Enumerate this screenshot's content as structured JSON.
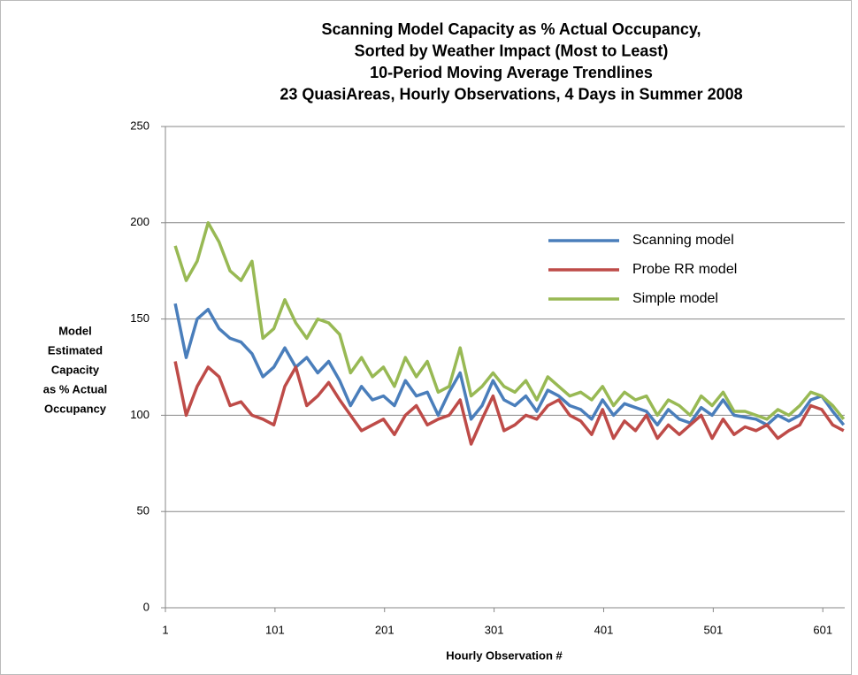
{
  "chart_data": {
    "type": "line",
    "title": [
      "Scanning Model Capacity as % Actual Occupancy,",
      "Sorted by Weather Impact (Most to Least)",
      "10-Period Moving Average Trendlines",
      "23 QuasiAreas, Hourly Observations, 4 Days in Summer 2008"
    ],
    "x_label": "Hourly Observation #",
    "y_label": [
      "Model",
      "Estimated",
      "Capacity",
      "as % Actual",
      "Occupancy"
    ],
    "x": [
      10,
      20,
      30,
      40,
      50,
      60,
      70,
      80,
      90,
      100,
      110,
      120,
      130,
      140,
      150,
      160,
      170,
      180,
      190,
      200,
      210,
      220,
      230,
      240,
      250,
      260,
      270,
      280,
      290,
      300,
      310,
      320,
      330,
      340,
      350,
      360,
      370,
      380,
      390,
      400,
      410,
      420,
      430,
      440,
      450,
      460,
      470,
      480,
      490,
      500,
      510,
      520,
      530,
      540,
      550,
      560,
      570,
      580,
      590,
      600,
      610,
      620
    ],
    "series": [
      {
        "name": "Scanning model",
        "color": "#4a7ebb",
        "values": [
          158,
          130,
          150,
          155,
          145,
          140,
          138,
          132,
          120,
          125,
          135,
          125,
          130,
          122,
          128,
          118,
          105,
          115,
          108,
          110,
          105,
          118,
          110,
          112,
          100,
          112,
          122,
          98,
          105,
          118,
          108,
          105,
          110,
          102,
          113,
          110,
          105,
          103,
          98,
          108,
          100,
          106,
          104,
          102,
          95,
          103,
          98,
          96,
          104,
          100,
          108,
          100,
          99,
          98,
          95,
          100,
          97,
          100,
          108,
          110,
          102,
          95
        ]
      },
      {
        "name": "Probe RR model",
        "color": "#be4b48",
        "values": [
          128,
          100,
          115,
          125,
          120,
          105,
          107,
          100,
          98,
          95,
          115,
          125,
          105,
          110,
          117,
          108,
          100,
          92,
          95,
          98,
          90,
          100,
          105,
          95,
          98,
          100,
          108,
          85,
          98,
          110,
          92,
          95,
          100,
          98,
          105,
          108,
          100,
          97,
          90,
          103,
          88,
          97,
          92,
          100,
          88,
          95,
          90,
          95,
          100,
          88,
          98,
          90,
          94,
          92,
          95,
          88,
          92,
          95,
          105,
          103,
          95,
          92
        ]
      },
      {
        "name": "Simple model",
        "color": "#98b954",
        "values": [
          188,
          170,
          180,
          200,
          190,
          175,
          170,
          180,
          140,
          145,
          160,
          148,
          140,
          150,
          148,
          142,
          122,
          130,
          120,
          125,
          115,
          130,
          120,
          128,
          112,
          115,
          135,
          110,
          115,
          122,
          115,
          112,
          118,
          108,
          120,
          115,
          110,
          112,
          108,
          115,
          105,
          112,
          108,
          110,
          100,
          108,
          105,
          100,
          110,
          105,
          112,
          102,
          102,
          100,
          98,
          103,
          100,
          105,
          112,
          110,
          105,
          98
        ]
      }
    ],
    "xlim": [
      1,
      621
    ],
    "xticks": [
      1,
      101,
      201,
      301,
      401,
      501,
      601
    ],
    "ylim": [
      0,
      250
    ],
    "yticks": [
      0,
      50,
      100,
      150,
      200,
      250
    ],
    "grid": true,
    "legend": "upper-right"
  }
}
